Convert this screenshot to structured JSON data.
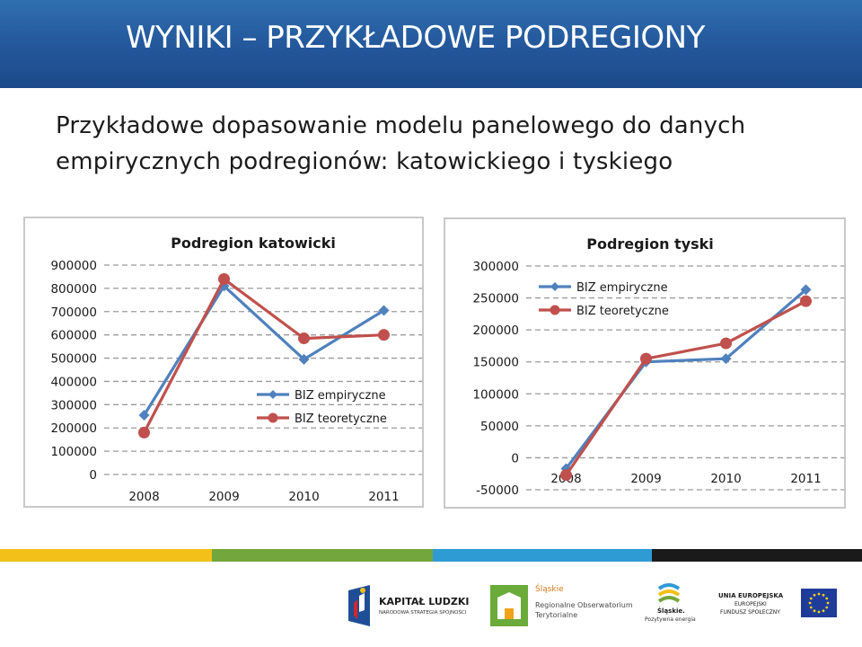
{
  "header": {
    "title": "WYNIKI – PRZYKŁADOWE PODREGIONY"
  },
  "subtitle": {
    "line1": "Przykładowe dopasowanie modelu panelowego do danych",
    "line2": "empirycznych podregionów: katowickiego i tyskiego"
  },
  "colors": {
    "empirical": "#4f81bd",
    "theoretical": "#c0504d",
    "header_bg": "#23569a"
  },
  "chart_data": [
    {
      "type": "line",
      "title": "Podregion katowicki",
      "categories": [
        "2008",
        "2009",
        "2010",
        "2011"
      ],
      "ylim": [
        0,
        900000
      ],
      "yticks": [
        "900000",
        "800000",
        "700000",
        "600000",
        "500000",
        "400000",
        "300000",
        "200000",
        "100000",
        "0"
      ],
      "grid": true,
      "legend_position": "bottom-right",
      "series": [
        {
          "name": "BIZ empiryczne",
          "values": [
            255000,
            810000,
            495000,
            705000
          ],
          "marker": "diamond"
        },
        {
          "name": "BIZ teoretyczne",
          "values": [
            180000,
            840000,
            585000,
            600000
          ],
          "marker": "circle"
        }
      ]
    },
    {
      "type": "line",
      "title": "Podregion tyski",
      "categories": [
        "2008",
        "2009",
        "2010",
        "2011"
      ],
      "ylim": [
        -50000,
        300000
      ],
      "yticks": [
        "300000",
        "250000",
        "200000",
        "150000",
        "100000",
        "50000",
        "0",
        "-50000"
      ],
      "grid": true,
      "legend_position": "top-left",
      "series": [
        {
          "name": "BIZ empiryczne",
          "values": [
            -17000,
            150000,
            155000,
            263000
          ],
          "marker": "diamond"
        },
        {
          "name": "BIZ teoretyczne",
          "values": [
            -27000,
            155000,
            179000,
            245000
          ],
          "marker": "circle"
        }
      ]
    }
  ],
  "stripes": [
    "#f2c018",
    "#73a63c",
    "#2f9bd5",
    "#1a1a1a"
  ],
  "logos": {
    "kapital": {
      "title": "KAPITAŁ LUDZKI",
      "sub": "NARODOWA STRATEGIA SPÓJNOŚCI"
    },
    "slaskie_obs": {
      "top": "Śląskie",
      "line1": "Regionalne Obserwatorium",
      "line2": "Terytorialne"
    },
    "slaskie_energy": {
      "line1": "Śląskie.",
      "line2": "Pozytywna energia"
    },
    "ue": {
      "line1": "UNIA EUROPEJSKA",
      "line2": "EUROPEJSKI",
      "line3": "FUNDUSZ SPOŁECZNY"
    }
  }
}
